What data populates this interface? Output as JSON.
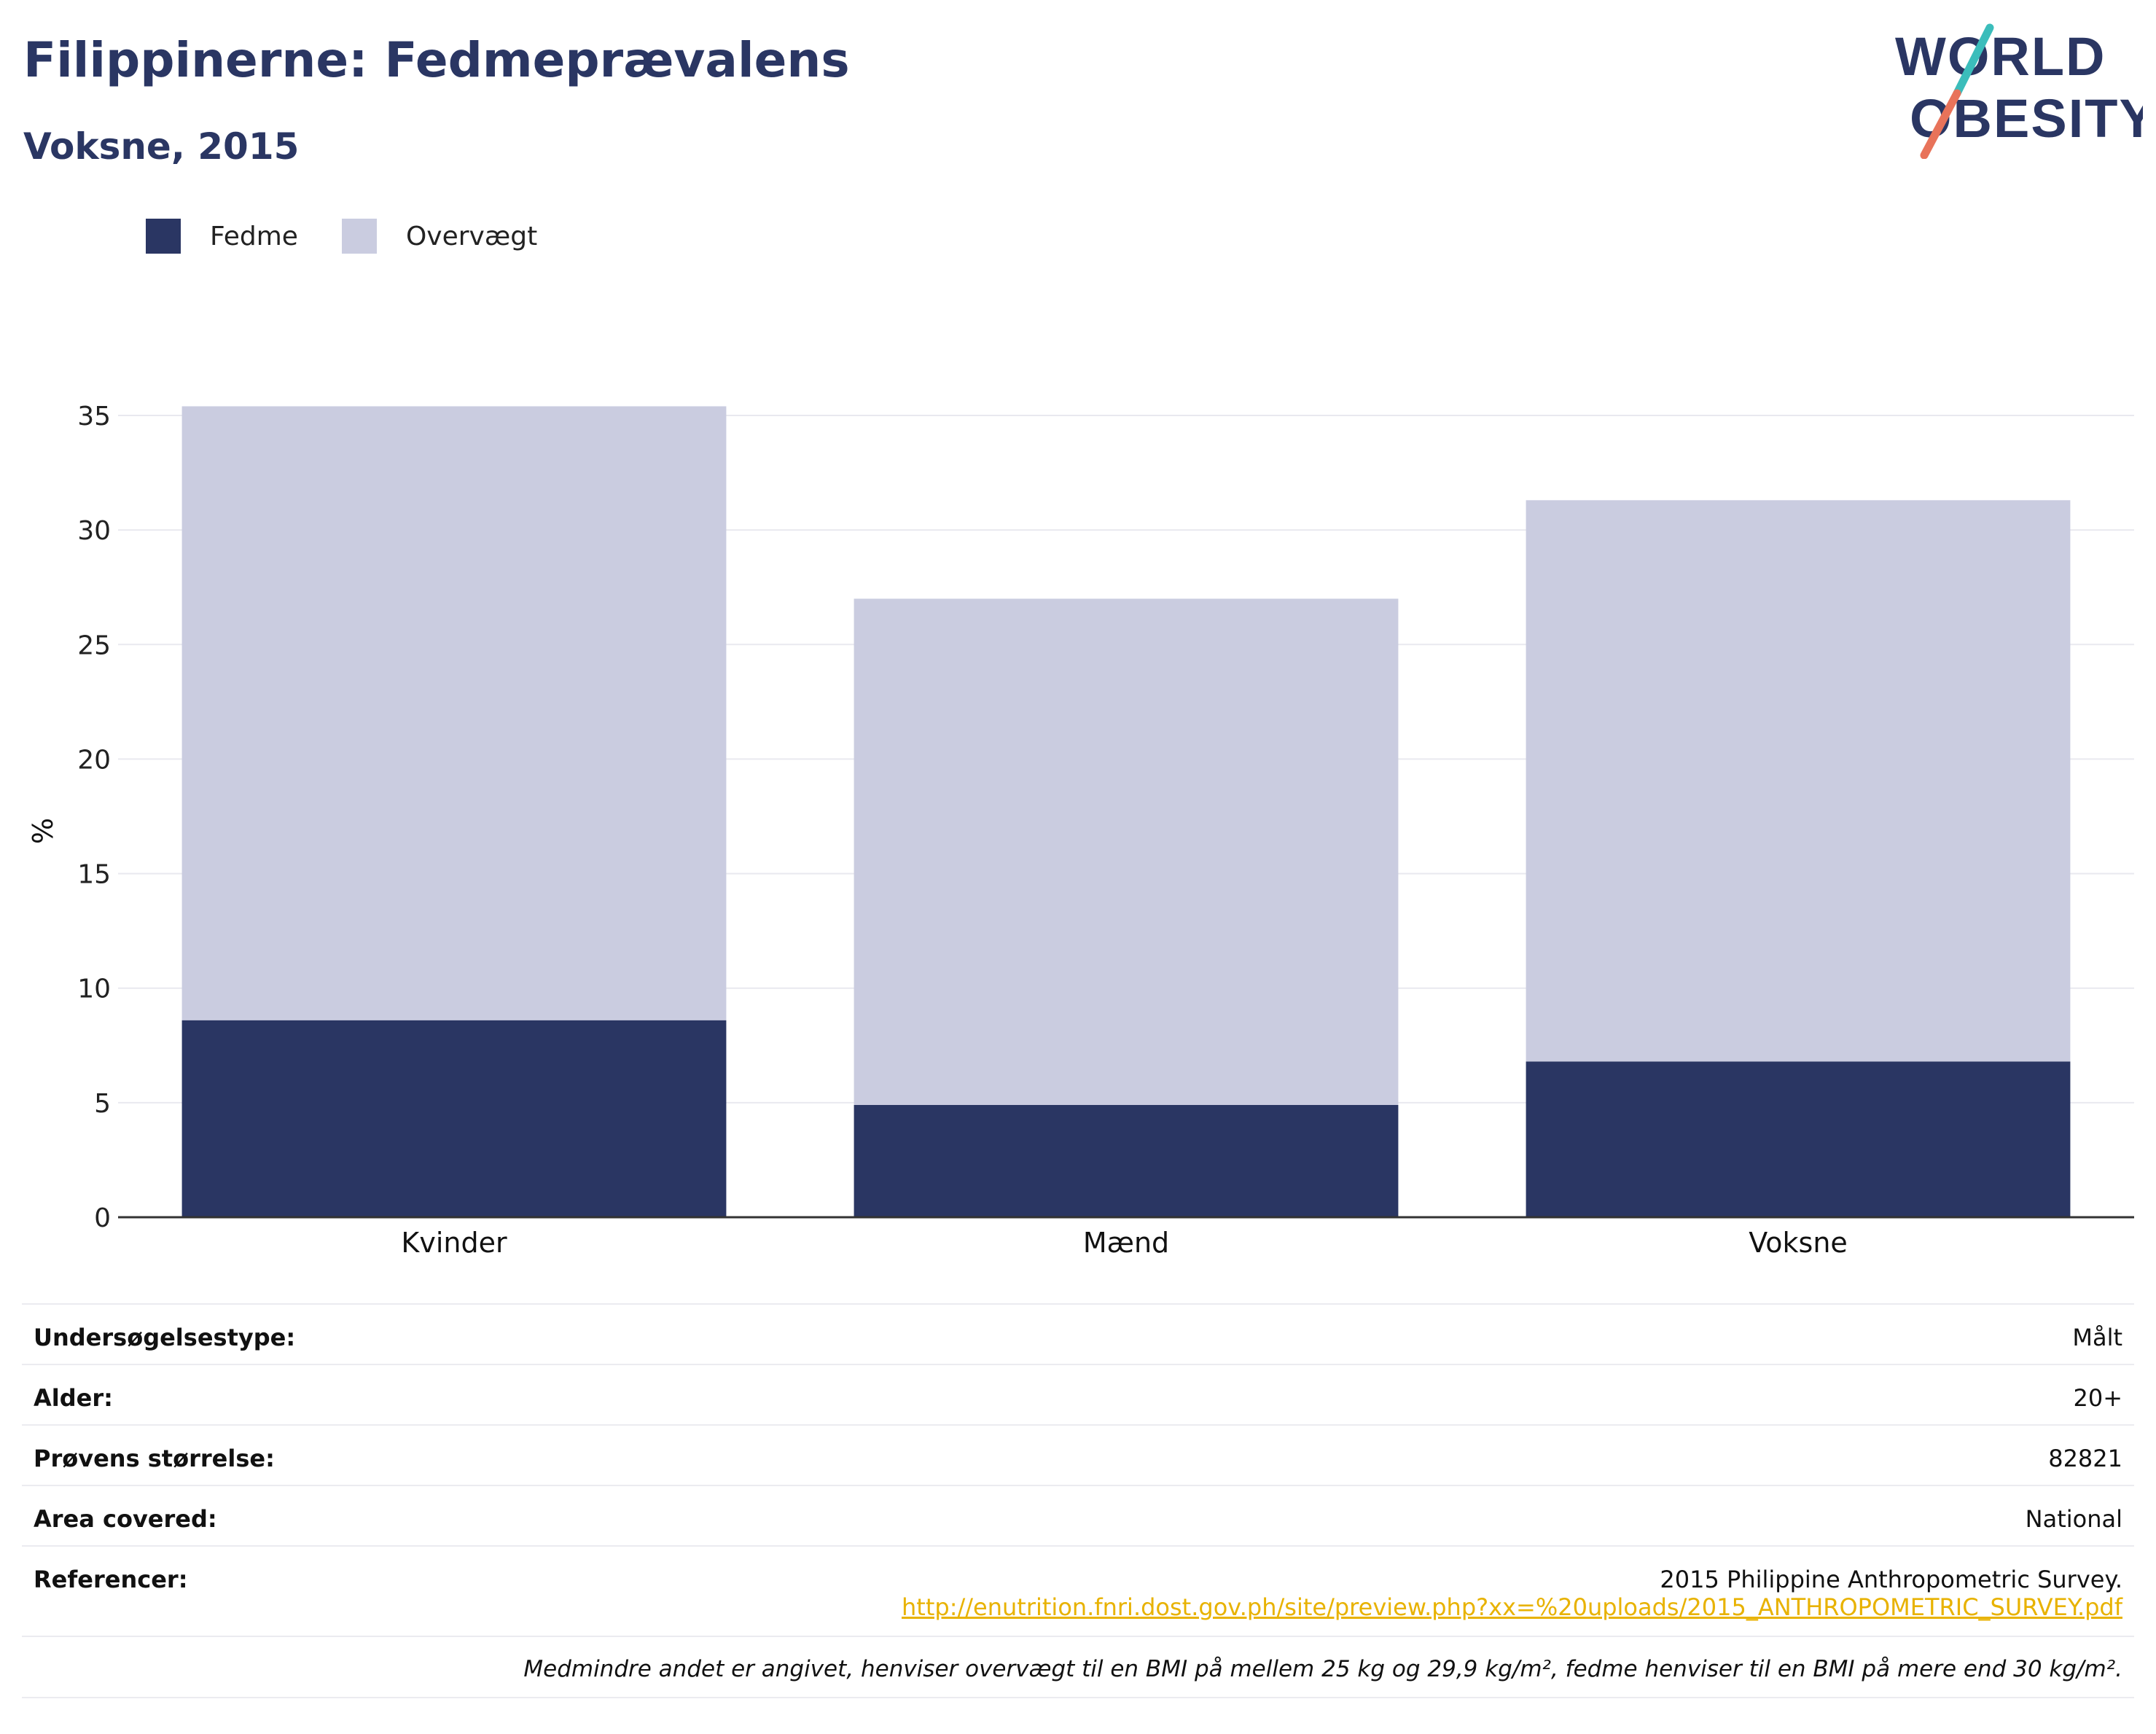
{
  "header": {
    "title": "Filippinerne: Fedmeprævalens",
    "subtitle": "Voksne, 2015"
  },
  "logo": {
    "line1": "WORLD",
    "line2": "OBESITY"
  },
  "colors": {
    "fedme": "#2a3663",
    "overvaegt": "#cacce0",
    "accent_teal": "#3bbdbb",
    "accent_coral": "#e8735a",
    "link": "#e8b200"
  },
  "chart_data": {
    "type": "bar",
    "stacked": true,
    "categories": [
      "Kvinder",
      "Mænd",
      "Voksne"
    ],
    "series": [
      {
        "name": "Fedme",
        "values": [
          8.6,
          4.9,
          6.8
        ]
      },
      {
        "name": "Overvægt",
        "values": [
          26.8,
          22.1,
          24.5
        ]
      }
    ],
    "ylabel": "%",
    "yticks": [
      0,
      5,
      10,
      15,
      20,
      25,
      30,
      35
    ],
    "ylim": [
      0,
      35
    ],
    "grid": true,
    "legend_position": "top-left"
  },
  "info": {
    "survey_type": {
      "label": "Undersøgelsestype:",
      "value": "Målt"
    },
    "age": {
      "label": "Alder:",
      "value": "20+"
    },
    "sample_size": {
      "label": "Prøvens størrelse:",
      "value": "82821"
    },
    "area": {
      "label": "Area covered:",
      "value": "National"
    },
    "references": {
      "label": "Referencer:",
      "text": "2015 Philippine Anthropometric Survey.",
      "url": "http://enutrition.fnri.dost.gov.ph/site/preview.php?xx=%20uploads/2015_ANTHROPOMETRIC_SURVEY.pdf"
    },
    "note": "Medmindre andet er angivet, henviser overvægt til en BMI på mellem 25 kg og 29,9 kg/m², fedme henviser til en BMI på mere end 30 kg/m²."
  }
}
